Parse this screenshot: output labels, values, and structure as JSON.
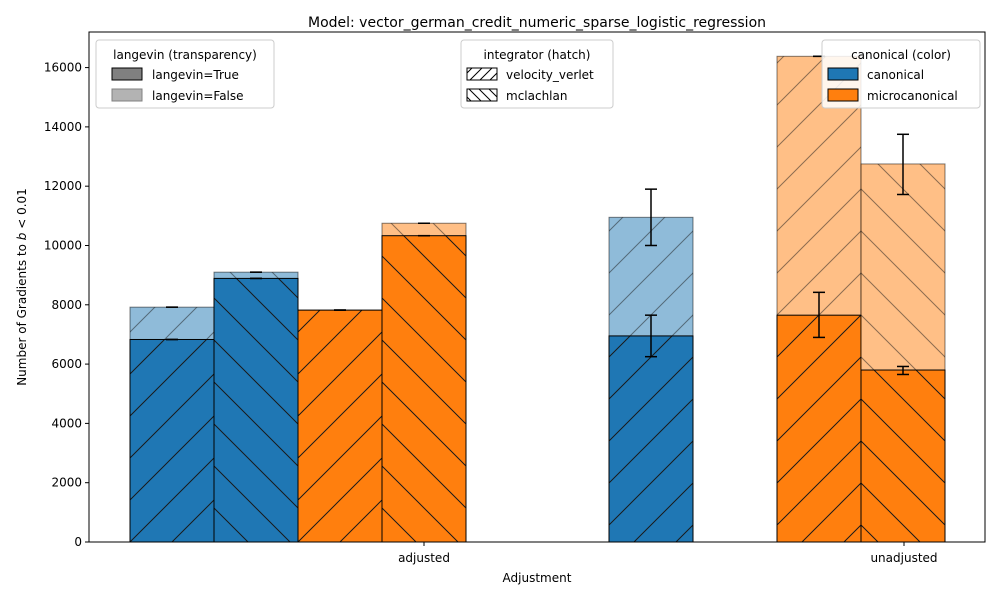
{
  "chart_data": {
    "type": "bar",
    "title": "Model: vector_german_credit_numeric_sparse_logistic_regression",
    "xlabel": "Adjustment",
    "ylabel": "Number of Gradients to b < 0.01",
    "categories": [
      "adjusted",
      "unadjusted"
    ],
    "ylim": [
      0,
      17200
    ],
    "yticks": [
      0,
      2000,
      4000,
      6000,
      8000,
      10000,
      12000,
      14000,
      16000
    ],
    "colors": {
      "canonical": "#1f77b4",
      "microcanonical": "#ff7f0e"
    },
    "bars": [
      {
        "category": "adjusted",
        "canonical": "canonical",
        "integrator": "velocity_verlet",
        "langevin_true": 6830,
        "langevin_false": 7920,
        "err_true": [
          6830,
          6830
        ],
        "err_false": [
          7920,
          7920
        ]
      },
      {
        "category": "adjusted",
        "canonical": "canonical",
        "integrator": "mclachlan",
        "langevin_true": 8890,
        "langevin_false": 9100,
        "err_true": [
          8890,
          8890
        ],
        "err_false": [
          9100,
          9100
        ]
      },
      {
        "category": "adjusted",
        "canonical": "microcanonical",
        "integrator": "velocity_verlet",
        "langevin_true": 7820,
        "langevin_false": 7820,
        "err_true": [
          7820,
          7820
        ],
        "err_false": [
          7820,
          7820
        ]
      },
      {
        "category": "adjusted",
        "canonical": "microcanonical",
        "integrator": "mclachlan",
        "langevin_true": 10330,
        "langevin_false": 10750,
        "err_true": [
          10330,
          10330
        ],
        "err_false": [
          10750,
          10750
        ]
      },
      {
        "category": "unadjusted",
        "canonical": "canonical",
        "integrator": "velocity_verlet",
        "langevin_true": 6950,
        "langevin_false": 10950,
        "err_true": [
          6250,
          7650
        ],
        "err_false": [
          10000,
          11900
        ]
      },
      {
        "category": "unadjusted",
        "canonical": "microcanonical",
        "integrator": "velocity_verlet",
        "langevin_true": 7650,
        "langevin_false": 16380,
        "err_true": [
          6900,
          8420
        ],
        "err_false": [
          16380,
          16380
        ]
      },
      {
        "category": "unadjusted",
        "canonical": "microcanonical",
        "integrator": "mclachlan",
        "langevin_true": 5800,
        "langevin_false": 12750,
        "err_true": [
          5650,
          5920
        ],
        "err_false": [
          11720,
          13750
        ]
      }
    ],
    "legends": [
      {
        "title": "langevin (transparency)",
        "placement": "top-left",
        "entries": [
          "langevin=True",
          "langevin=False"
        ]
      },
      {
        "title": "integrator (hatch)",
        "placement": "top-center",
        "entries": [
          "velocity_verlet",
          "mclachlan"
        ]
      },
      {
        "title": "canonical (color)",
        "placement": "top-right",
        "entries": [
          "canonical",
          "microcanonical"
        ]
      }
    ]
  }
}
